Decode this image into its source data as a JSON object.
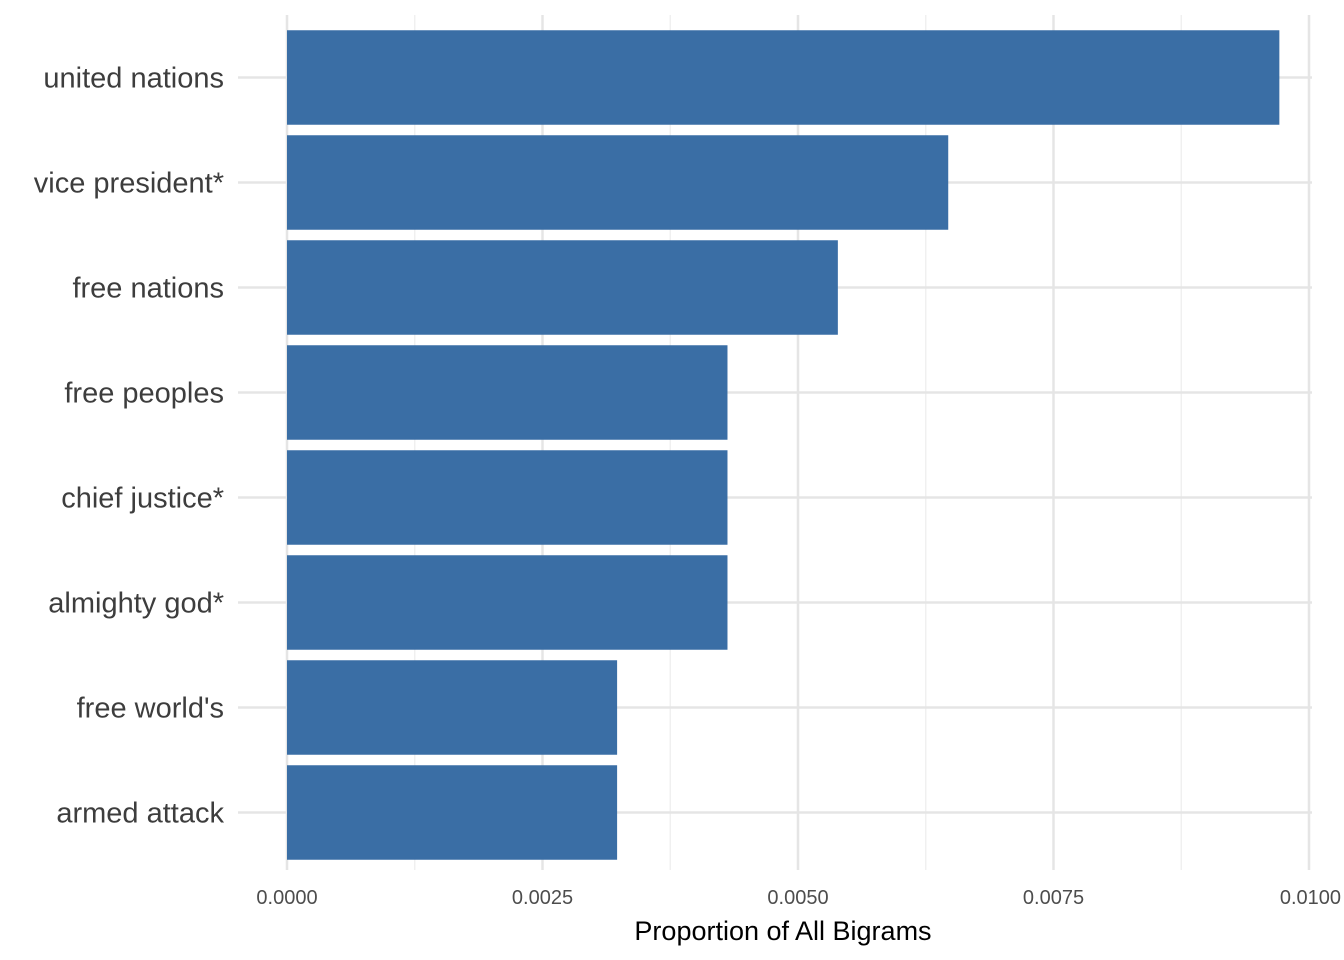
{
  "chart_data": {
    "type": "bar",
    "orientation": "horizontal",
    "categories": [
      "united nations",
      "vice president*",
      "free nations",
      "free peoples",
      "chief justice*",
      "almighty god*",
      "free world's",
      "armed attack"
    ],
    "values": [
      0.00971,
      0.00647,
      0.00539,
      0.00431,
      0.00431,
      0.00431,
      0.00323,
      0.00323
    ],
    "xlabel": "Proportion of All Bigrams",
    "ylabel": "",
    "xlim": [
      0,
      0.01
    ],
    "x_ticks": [
      0,
      0.0025,
      0.005,
      0.0075,
      0.01
    ],
    "x_tick_labels": [
      "0.0000",
      "0.0025",
      "0.0050",
      "0.0075",
      "0.0100"
    ],
    "grid": true,
    "legend": "none",
    "colors": {
      "bar": "#3a6ea5",
      "grid_major": "#e5e5e5",
      "grid_minor": "#f0f0f0"
    }
  }
}
